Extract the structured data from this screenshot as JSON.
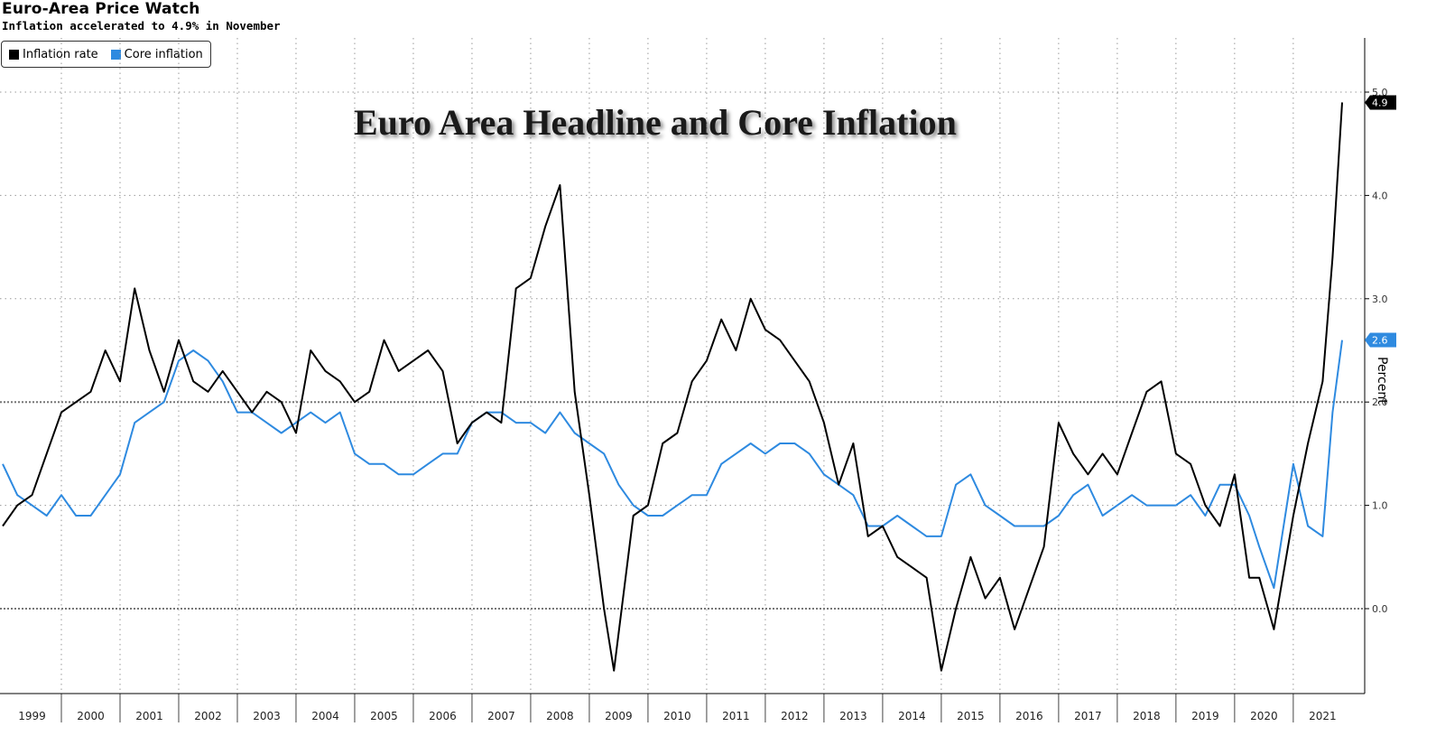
{
  "header": {
    "title": "Euro-Area Price Watch",
    "subtitle": "Inflation accelerated to 4.9% in November"
  },
  "overlay_title": "Euro Area Headline and Core Inflation",
  "chart_data": {
    "type": "line",
    "ylabel": "Percent",
    "ylim": [
      -0.85,
      5.5
    ],
    "yticks": [
      0.0,
      1.0,
      2.0,
      3.0,
      4.0,
      5.0
    ],
    "ytick_labels": [
      "0.0",
      "1.0",
      "2.0",
      "3.0",
      "4.0",
      "5.0"
    ],
    "x_start": 1999.0,
    "x_end": 2021.833,
    "year_labels": [
      "1999",
      "2000",
      "2001",
      "2002",
      "2003",
      "2004",
      "2005",
      "2006",
      "2007",
      "2008",
      "2009",
      "2010",
      "2011",
      "2012",
      "2013",
      "2014",
      "2015",
      "2016",
      "2017",
      "2018",
      "2019",
      "2020",
      "2021"
    ],
    "legend_position": "top-left",
    "grid": true,
    "series": [
      {
        "name": "Inflation rate",
        "color": "#000000",
        "last_value_label": "4.9",
        "points": [
          [
            1999.0,
            0.8
          ],
          [
            1999.25,
            1.0
          ],
          [
            1999.5,
            1.1
          ],
          [
            1999.75,
            1.5
          ],
          [
            2000.0,
            1.9
          ],
          [
            2000.25,
            2.0
          ],
          [
            2000.5,
            2.1
          ],
          [
            2000.75,
            2.5
          ],
          [
            2001.0,
            2.2
          ],
          [
            2001.25,
            3.1
          ],
          [
            2001.5,
            2.5
          ],
          [
            2001.75,
            2.1
          ],
          [
            2002.0,
            2.6
          ],
          [
            2002.25,
            2.2
          ],
          [
            2002.5,
            2.1
          ],
          [
            2002.75,
            2.3
          ],
          [
            2003.0,
            2.1
          ],
          [
            2003.25,
            1.9
          ],
          [
            2003.5,
            2.1
          ],
          [
            2003.75,
            2.0
          ],
          [
            2004.0,
            1.7
          ],
          [
            2004.25,
            2.5
          ],
          [
            2004.5,
            2.3
          ],
          [
            2004.75,
            2.2
          ],
          [
            2005.0,
            2.0
          ],
          [
            2005.25,
            2.1
          ],
          [
            2005.5,
            2.6
          ],
          [
            2005.75,
            2.3
          ],
          [
            2006.0,
            2.4
          ],
          [
            2006.25,
            2.5
          ],
          [
            2006.5,
            2.3
          ],
          [
            2006.75,
            1.6
          ],
          [
            2007.0,
            1.8
          ],
          [
            2007.25,
            1.9
          ],
          [
            2007.5,
            1.8
          ],
          [
            2007.75,
            3.1
          ],
          [
            2008.0,
            3.2
          ],
          [
            2008.25,
            3.7
          ],
          [
            2008.5,
            4.1
          ],
          [
            2008.75,
            2.1
          ],
          [
            2009.0,
            1.1
          ],
          [
            2009.25,
            0.0
          ],
          [
            2009.42,
            -0.6
          ],
          [
            2009.75,
            0.9
          ],
          [
            2010.0,
            1.0
          ],
          [
            2010.25,
            1.6
          ],
          [
            2010.5,
            1.7
          ],
          [
            2010.75,
            2.2
          ],
          [
            2011.0,
            2.4
          ],
          [
            2011.25,
            2.8
          ],
          [
            2011.5,
            2.5
          ],
          [
            2011.75,
            3.0
          ],
          [
            2012.0,
            2.7
          ],
          [
            2012.25,
            2.6
          ],
          [
            2012.5,
            2.4
          ],
          [
            2012.75,
            2.2
          ],
          [
            2013.0,
            1.8
          ],
          [
            2013.25,
            1.2
          ],
          [
            2013.5,
            1.6
          ],
          [
            2013.75,
            0.7
          ],
          [
            2014.0,
            0.8
          ],
          [
            2014.25,
            0.5
          ],
          [
            2014.5,
            0.4
          ],
          [
            2014.75,
            0.3
          ],
          [
            2015.0,
            -0.6
          ],
          [
            2015.25,
            0.0
          ],
          [
            2015.5,
            0.5
          ],
          [
            2015.75,
            0.1
          ],
          [
            2016.0,
            0.3
          ],
          [
            2016.25,
            -0.2
          ],
          [
            2016.5,
            0.2
          ],
          [
            2016.75,
            0.6
          ],
          [
            2017.0,
            1.8
          ],
          [
            2017.25,
            1.5
          ],
          [
            2017.5,
            1.3
          ],
          [
            2017.75,
            1.5
          ],
          [
            2018.0,
            1.3
          ],
          [
            2018.25,
            1.7
          ],
          [
            2018.5,
            2.1
          ],
          [
            2018.75,
            2.2
          ],
          [
            2019.0,
            1.5
          ],
          [
            2019.25,
            1.4
          ],
          [
            2019.5,
            1.0
          ],
          [
            2019.75,
            0.8
          ],
          [
            2020.0,
            1.3
          ],
          [
            2020.25,
            0.3
          ],
          [
            2020.42,
            0.3
          ],
          [
            2020.67,
            -0.2
          ],
          [
            2021.0,
            0.9
          ],
          [
            2021.25,
            1.6
          ],
          [
            2021.5,
            2.2
          ],
          [
            2021.67,
            3.4
          ],
          [
            2021.833,
            4.9
          ]
        ]
      },
      {
        "name": "Core inflation",
        "color": "#2e8ae0",
        "last_value_label": "2.6",
        "points": [
          [
            1999.0,
            1.4
          ],
          [
            1999.25,
            1.1
          ],
          [
            1999.5,
            1.0
          ],
          [
            1999.75,
            0.9
          ],
          [
            2000.0,
            1.1
          ],
          [
            2000.25,
            0.9
          ],
          [
            2000.5,
            0.9
          ],
          [
            2000.75,
            1.1
          ],
          [
            2001.0,
            1.3
          ],
          [
            2001.25,
            1.8
          ],
          [
            2001.5,
            1.9
          ],
          [
            2001.75,
            2.0
          ],
          [
            2002.0,
            2.4
          ],
          [
            2002.25,
            2.5
          ],
          [
            2002.5,
            2.4
          ],
          [
            2002.75,
            2.2
          ],
          [
            2003.0,
            1.9
          ],
          [
            2003.25,
            1.9
          ],
          [
            2003.5,
            1.8
          ],
          [
            2003.75,
            1.7
          ],
          [
            2004.0,
            1.8
          ],
          [
            2004.25,
            1.9
          ],
          [
            2004.5,
            1.8
          ],
          [
            2004.75,
            1.9
          ],
          [
            2005.0,
            1.5
          ],
          [
            2005.25,
            1.4
          ],
          [
            2005.5,
            1.4
          ],
          [
            2005.75,
            1.3
          ],
          [
            2006.0,
            1.3
          ],
          [
            2006.25,
            1.4
          ],
          [
            2006.5,
            1.5
          ],
          [
            2006.75,
            1.5
          ],
          [
            2007.0,
            1.8
          ],
          [
            2007.25,
            1.9
          ],
          [
            2007.5,
            1.9
          ],
          [
            2007.75,
            1.8
          ],
          [
            2008.0,
            1.8
          ],
          [
            2008.25,
            1.7
          ],
          [
            2008.5,
            1.9
          ],
          [
            2008.75,
            1.7
          ],
          [
            2009.0,
            1.6
          ],
          [
            2009.25,
            1.5
          ],
          [
            2009.5,
            1.2
          ],
          [
            2009.75,
            1.0
          ],
          [
            2010.0,
            0.9
          ],
          [
            2010.25,
            0.9
          ],
          [
            2010.5,
            1.0
          ],
          [
            2010.75,
            1.1
          ],
          [
            2011.0,
            1.1
          ],
          [
            2011.25,
            1.4
          ],
          [
            2011.5,
            1.5
          ],
          [
            2011.75,
            1.6
          ],
          [
            2012.0,
            1.5
          ],
          [
            2012.25,
            1.6
          ],
          [
            2012.5,
            1.6
          ],
          [
            2012.75,
            1.5
          ],
          [
            2013.0,
            1.3
          ],
          [
            2013.25,
            1.2
          ],
          [
            2013.5,
            1.1
          ],
          [
            2013.75,
            0.8
          ],
          [
            2014.0,
            0.8
          ],
          [
            2014.25,
            0.9
          ],
          [
            2014.5,
            0.8
          ],
          [
            2014.75,
            0.7
          ],
          [
            2015.0,
            0.7
          ],
          [
            2015.25,
            1.2
          ],
          [
            2015.5,
            1.3
          ],
          [
            2015.75,
            1.0
          ],
          [
            2016.0,
            0.9
          ],
          [
            2016.25,
            0.8
          ],
          [
            2016.5,
            0.8
          ],
          [
            2016.75,
            0.8
          ],
          [
            2017.0,
            0.9
          ],
          [
            2017.25,
            1.1
          ],
          [
            2017.5,
            1.2
          ],
          [
            2017.75,
            0.9
          ],
          [
            2018.0,
            1.0
          ],
          [
            2018.25,
            1.1
          ],
          [
            2018.5,
            1.0
          ],
          [
            2018.75,
            1.0
          ],
          [
            2019.0,
            1.0
          ],
          [
            2019.25,
            1.1
          ],
          [
            2019.5,
            0.9
          ],
          [
            2019.75,
            1.2
          ],
          [
            2020.0,
            1.2
          ],
          [
            2020.25,
            0.9
          ],
          [
            2020.42,
            0.6
          ],
          [
            2020.67,
            0.2
          ],
          [
            2021.0,
            1.4
          ],
          [
            2021.25,
            0.8
          ],
          [
            2021.5,
            0.7
          ],
          [
            2021.67,
            1.9
          ],
          [
            2021.833,
            2.6
          ]
        ]
      }
    ]
  }
}
